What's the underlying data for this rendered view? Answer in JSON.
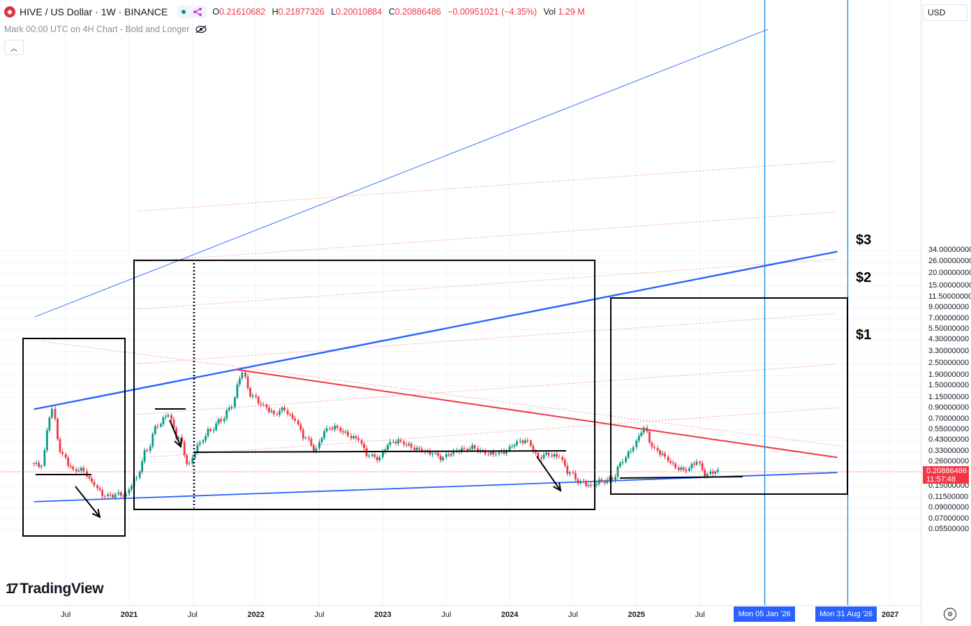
{
  "header": {
    "symbol_icon": "hive-logo-icon",
    "title": "HIVE / US Dollar · 1W · BINANCE",
    "ohlc": {
      "open_label": "O",
      "open": "0.21610682",
      "high_label": "H",
      "high": "0.21877326",
      "low_label": "L",
      "low": "0.20010884",
      "close_label": "C",
      "close": "0.20886486",
      "change": "−0.00951021 (−4.35%)",
      "vol_label": "Vol",
      "vol": "1.29 M"
    },
    "indicator": "Mark 00:00 UTC on 4H Chart - Bold and Longer"
  },
  "price_axis": {
    "currency": "USD",
    "scale": "log",
    "ticks": [
      "34.00000000",
      "26.00000000",
      "20.00000000",
      "15.00000000",
      "11.50000000",
      "9.00000000",
      "7.00000000",
      "5.50000000",
      "4.30000000",
      "3.30000000",
      "2.50000000",
      "1.90000000",
      "1.50000000",
      "1.15000000",
      "0.90000000",
      "0.70000000",
      "0.55000000",
      "0.43000000",
      "0.33000000",
      "0.26000000",
      "0.15000000",
      "0.11500000",
      "0.09000000",
      "0.07000000",
      "0.05500000"
    ],
    "current_price": "0.20886486",
    "countdown": "11:57:48"
  },
  "time_axis": {
    "ticks": [
      "Jul",
      "2021",
      "Jul",
      "2022",
      "Jul",
      "2023",
      "Jul",
      "2024",
      "Jul",
      "2025",
      "Jul",
      "2027"
    ],
    "markers": [
      "Mon 05 Jan '26",
      "Mon 31 Aug '26"
    ]
  },
  "annotations": [
    "$3",
    "$2",
    "$1"
  ],
  "branding": "TradingView",
  "colors": {
    "up": "#089981",
    "down": "#f23645",
    "trendline": "#2962ff",
    "resistance": "#f23645",
    "vertical": "#2196f3"
  },
  "chart_data": {
    "type": "candlestick",
    "interval": "1W",
    "y_scale": "log",
    "series": [
      {
        "name": "HIVE / US Dollar",
        "x": [
          "2020-04",
          "2020-05",
          "2020-06",
          "2020-07",
          "2020-08",
          "2020-09",
          "2020-10",
          "2020-11",
          "2020-12",
          "2021-01",
          "2021-02",
          "2021-03",
          "2021-04",
          "2021-05",
          "2021-06",
          "2021-07",
          "2021-08",
          "2021-09",
          "2021-10",
          "2021-11",
          "2021-12",
          "2022-01",
          "2022-02",
          "2022-03",
          "2022-04",
          "2022-05",
          "2022-06",
          "2022-07",
          "2022-08",
          "2022-09",
          "2022-10",
          "2022-11",
          "2022-12",
          "2023-01",
          "2023-02",
          "2023-03",
          "2023-04",
          "2023-05",
          "2023-06",
          "2023-07",
          "2023-08",
          "2023-09",
          "2023-10",
          "2023-11",
          "2023-12",
          "2024-01",
          "2024-02",
          "2024-03",
          "2024-04",
          "2024-05",
          "2024-06",
          "2024-07",
          "2024-08",
          "2024-09",
          "2024-10",
          "2024-11",
          "2024-12",
          "2025-01",
          "2025-02",
          "2025-03",
          "2025-04",
          "2025-05",
          "2025-06",
          "2025-07",
          "2025-08"
        ],
        "close": [
          0.24,
          0.85,
          0.3,
          0.22,
          0.22,
          0.16,
          0.12,
          0.12,
          0.12,
          0.18,
          0.35,
          0.62,
          0.78,
          0.45,
          0.24,
          0.4,
          0.55,
          0.7,
          0.95,
          2.0,
          1.15,
          0.95,
          0.8,
          0.9,
          0.7,
          0.45,
          0.34,
          0.55,
          0.58,
          0.5,
          0.45,
          0.3,
          0.28,
          0.4,
          0.42,
          0.38,
          0.35,
          0.32,
          0.28,
          0.32,
          0.35,
          0.37,
          0.33,
          0.32,
          0.33,
          0.4,
          0.42,
          0.3,
          0.32,
          0.3,
          0.2,
          0.16,
          0.15,
          0.17,
          0.18,
          0.27,
          0.36,
          0.55,
          0.35,
          0.3,
          0.24,
          0.22,
          0.26,
          0.19,
          0.21
        ]
      }
    ],
    "overlays": [
      {
        "type": "trendline",
        "name": "support",
        "from": [
          "2020-04",
          0.105
        ],
        "to": [
          "2026-08",
          0.205
        ]
      },
      {
        "type": "trendline",
        "name": "upper channel",
        "from": [
          "2020-04",
          0.88
        ],
        "to": [
          "2026-08",
          33.0
        ]
      },
      {
        "type": "trendline",
        "name": "resistance",
        "from": [
          "2021-11",
          2.2
        ],
        "to": [
          "2026-08",
          0.29
        ]
      },
      {
        "type": "horizontal",
        "name": "support level",
        "value": 0.26
      },
      {
        "type": "vertical",
        "date": "2026-01-05"
      },
      {
        "type": "vertical",
        "date": "2026-08-31"
      }
    ]
  }
}
